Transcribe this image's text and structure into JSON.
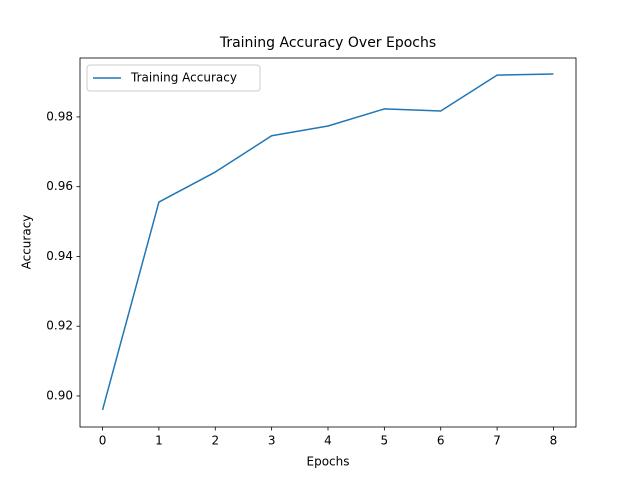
{
  "chart_data": {
    "type": "line",
    "title": "Training Accuracy Over Epochs",
    "xlabel": "Epochs",
    "ylabel": "Accuracy",
    "x": [
      0,
      1,
      2,
      3,
      4,
      5,
      6,
      7,
      8
    ],
    "series": [
      {
        "name": "Training Accuracy",
        "color": "#1f77b4",
        "values": [
          0.896,
          0.9556,
          0.9642,
          0.9746,
          0.9774,
          0.9823,
          0.9817,
          0.992,
          0.9923
        ]
      }
    ],
    "xlim": [
      -0.4,
      8.4
    ],
    "xticks": [
      0,
      1,
      2,
      3,
      4,
      5,
      6,
      7,
      8
    ],
    "ylim": [
      0.8911,
      0.9969
    ],
    "yticks": [
      {
        "value": 0.9,
        "label": "0.90"
      },
      0.92,
      0.94,
      0.96,
      0.98
    ],
    "legend": "upper left",
    "grid": false
  }
}
